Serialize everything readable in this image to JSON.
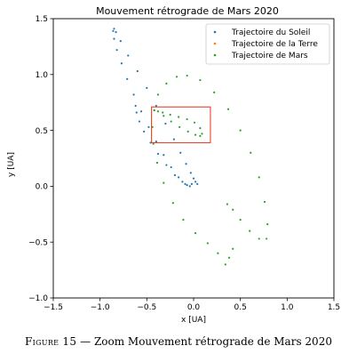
{
  "chart_data": {
    "type": "scatter",
    "title": "Mouvement rétrograde de Mars 2020",
    "xlabel": "x [UA]",
    "ylabel": "y [UA]",
    "xlim": [
      -1.5,
      1.5
    ],
    "ylim": [
      -1.0,
      1.5
    ],
    "xticks": [
      "−1.5",
      "−1.0",
      "−0.5",
      "0.0",
      "0.5",
      "1.0",
      "1.5"
    ],
    "yticks": [
      "−1.0",
      "−0.5",
      "0.0",
      "0.5",
      "1.0",
      "1.5"
    ],
    "xtick_values": [
      -1.5,
      -1.0,
      -0.5,
      0.0,
      0.5,
      1.0,
      1.5
    ],
    "ytick_values": [
      -1.0,
      -0.5,
      0.0,
      0.5,
      1.0,
      1.5
    ],
    "legend_position": "top-right",
    "series": [
      {
        "name": "Trajectoire du Soleil",
        "color": "#1f77b4",
        "points": [
          [
            0.04,
            0.02
          ],
          [
            0.02,
            0.04
          ],
          [
            0.0,
            0.07
          ],
          [
            -0.03,
            0.12
          ],
          [
            -0.08,
            0.2
          ],
          [
            -0.14,
            0.3
          ],
          [
            -0.21,
            0.42
          ],
          [
            -0.3,
            0.56
          ],
          [
            -0.4,
            0.72
          ],
          [
            -0.5,
            0.88
          ],
          [
            -0.6,
            1.03
          ],
          [
            -0.7,
            1.17
          ],
          [
            -0.78,
            1.3
          ],
          [
            -0.83,
            1.38
          ],
          [
            -0.85,
            1.41
          ],
          [
            -0.86,
            1.39
          ],
          [
            -0.85,
            1.32
          ],
          [
            -0.82,
            1.22
          ],
          [
            -0.77,
            1.1
          ],
          [
            -0.71,
            0.96
          ],
          [
            -0.64,
            0.82
          ],
          [
            -0.56,
            0.67
          ],
          [
            -0.48,
            0.53
          ],
          [
            -0.4,
            0.4
          ],
          [
            -0.32,
            0.28
          ],
          [
            -0.24,
            0.17
          ],
          [
            -0.16,
            0.08
          ],
          [
            -0.09,
            0.02
          ],
          [
            -0.04,
            0.0
          ],
          [
            -0.02,
            0.02
          ],
          [
            -0.62,
            0.72
          ],
          [
            -0.61,
            0.66
          ],
          [
            -0.58,
            0.58
          ],
          [
            -0.53,
            0.49
          ],
          [
            -0.46,
            0.39
          ],
          [
            -0.38,
            0.29
          ],
          [
            -0.29,
            0.19
          ],
          [
            -0.2,
            0.1
          ],
          [
            -0.12,
            0.04
          ],
          [
            -0.07,
            0.01
          ]
        ]
      },
      {
        "name": "Trajectoire de la Terre",
        "color": "#ff7f0e",
        "points": []
      },
      {
        "name": "Trajectoire de Mars",
        "color": "#2ca02c",
        "points": [
          [
            -0.38,
            0.67
          ],
          [
            -0.32,
            0.63
          ],
          [
            -0.24,
            0.58
          ],
          [
            -0.15,
            0.53
          ],
          [
            -0.06,
            0.49
          ],
          [
            0.02,
            0.46
          ],
          [
            0.07,
            0.45
          ],
          [
            0.09,
            0.47
          ],
          [
            0.07,
            0.52
          ],
          [
            0.01,
            0.57
          ],
          [
            -0.07,
            0.6
          ],
          [
            -0.16,
            0.62
          ],
          [
            -0.25,
            0.64
          ],
          [
            -0.33,
            0.66
          ],
          [
            -0.42,
            0.68
          ],
          [
            -0.38,
            0.82
          ],
          [
            -0.29,
            0.92
          ],
          [
            -0.18,
            0.98
          ],
          [
            -0.07,
            0.99
          ],
          [
            0.07,
            0.95
          ],
          [
            0.22,
            0.84
          ],
          [
            0.37,
            0.69
          ],
          [
            0.5,
            0.5
          ],
          [
            0.61,
            0.3
          ],
          [
            0.7,
            0.08
          ],
          [
            0.76,
            -0.14
          ],
          [
            0.79,
            -0.34
          ],
          [
            0.78,
            -0.47
          ],
          [
            0.7,
            -0.47
          ],
          [
            0.6,
            -0.4
          ],
          [
            0.5,
            -0.3
          ],
          [
            0.42,
            -0.21
          ],
          [
            0.36,
            -0.16
          ],
          [
            0.42,
            -0.56
          ],
          [
            0.38,
            -0.64
          ],
          [
            0.34,
            -0.7
          ],
          [
            0.26,
            -0.6
          ],
          [
            0.15,
            -0.51
          ],
          [
            0.02,
            -0.42
          ],
          [
            -0.11,
            -0.3
          ],
          [
            -0.22,
            -0.15
          ],
          [
            -0.32,
            0.03
          ],
          [
            -0.39,
            0.21
          ],
          [
            -0.43,
            0.38
          ],
          [
            -0.44,
            0.53
          ],
          [
            -0.42,
            0.68
          ]
        ]
      }
    ],
    "zoom_box": {
      "x": [
        -0.45,
        0.18
      ],
      "y": [
        0.39,
        0.71
      ],
      "color": "#e8412c"
    }
  },
  "caption": {
    "figure_label": "Figure 15",
    "separator": " — ",
    "text": "Zoom Mouvement rétrograde de Mars 2020"
  }
}
